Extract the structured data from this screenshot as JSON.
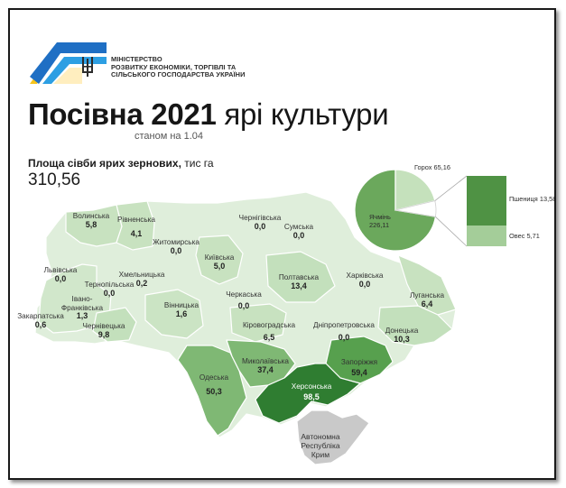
{
  "ministry": {
    "lines": [
      "МІНІСТЕРСТВО",
      "РОЗВИТКУ ЕКОНОМІКИ, ТОРГІВЛІ ТА",
      "СІЛЬСЬКОГО ГОСПОДАРСТВА УКРАЇНИ"
    ]
  },
  "title": {
    "bold": "Посівна 2021",
    "light": "ярі культури"
  },
  "subtitle": "станом на 1.04",
  "area": {
    "label_bold": "Площа сівби ярих зернових,",
    "label_unit": "тис га",
    "value": "310,56"
  },
  "colors": {
    "level0": "#dfeedb",
    "level1": "#c3e0bc",
    "level2": "#7fb874",
    "level3": "#57a04e",
    "level4": "#2f7d31",
    "crimea": "#c9c9c9",
    "pie_barley": "#6ba85c",
    "pie_peas": "#c5e1bc",
    "wheat": "#4f9244",
    "oats": "#a4cd99"
  },
  "regions": [
    {
      "name": "Волинська",
      "value": "5,8"
    },
    {
      "name": "Рівненська",
      "value": "4,1"
    },
    {
      "name": "Житомирська",
      "value": "0,0"
    },
    {
      "name": "Чернігівська",
      "value": "0,0"
    },
    {
      "name": "Сумська",
      "value": "0,0"
    },
    {
      "name": "Київська",
      "value": "5,0"
    },
    {
      "name": "Львівська",
      "value": "0,0"
    },
    {
      "name": "Хмельницька",
      "value": "0,2"
    },
    {
      "name": "Тернопільська",
      "value": "0,0"
    },
    {
      "name": "Полтавська",
      "value": "13,4"
    },
    {
      "name": "Харківська",
      "value": "0,0"
    },
    {
      "name": "Івано-\nФранківська",
      "value": "1,3"
    },
    {
      "name": "Вінницька",
      "value": "1,6"
    },
    {
      "name": "Черкаська",
      "value": "0,0"
    },
    {
      "name": "Луганська",
      "value": "6,4"
    },
    {
      "name": "Закарпатська",
      "value": "0,6"
    },
    {
      "name": "Чернівецька",
      "value": "9,8"
    },
    {
      "name": "Кіровоградська",
      "value": "6,5"
    },
    {
      "name": "Дніпропетровська",
      "value": "0,0"
    },
    {
      "name": "Донецька",
      "value": "10,3"
    },
    {
      "name": "Миколаївська",
      "value": "37,4"
    },
    {
      "name": "Запоріжжя",
      "value": "59,4"
    },
    {
      "name": "Одеська",
      "value": "50,3"
    },
    {
      "name": "Херсонська",
      "value": "98,5"
    }
  ],
  "crimea": "Автономна\nРеспубліка\nКрим",
  "pie": {
    "slices": [
      {
        "name": "Ячмінь",
        "value": "226,11"
      },
      {
        "name": "Горох",
        "value": "65,16"
      }
    ],
    "bar": [
      {
        "name": "Пшениця",
        "value": "13,58"
      },
      {
        "name": "Овес",
        "value": "5,71"
      }
    ]
  }
}
